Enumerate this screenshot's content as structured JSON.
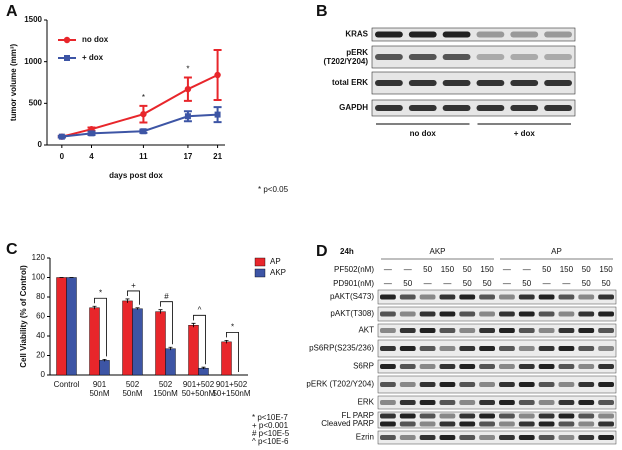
{
  "panels": [
    "A",
    "B",
    "C",
    "D"
  ],
  "chart_data": [
    {
      "type": "line",
      "ylabel": "tumor volume (mm³)",
      "xlabel": "days post dox",
      "annotation": "* p<0.05",
      "x": [
        0,
        4,
        11,
        17,
        21
      ],
      "xlim": [
        -2,
        22
      ],
      "xticks": [
        0,
        4,
        11,
        17,
        21
      ],
      "ylim": [
        0,
        1500
      ],
      "yticks": [
        0,
        500,
        1000,
        1500
      ],
      "significance": [
        null,
        null,
        "*",
        "*",
        null
      ],
      "series": [
        {
          "name": "no dox",
          "color": "#e8262b",
          "marker": "circle",
          "values": [
            100,
            190,
            370,
            670,
            840
          ],
          "errors": [
            10,
            20,
            100,
            140,
            300
          ]
        },
        {
          "name": "+ dox",
          "color": "#3d55a5",
          "marker": "square",
          "values": [
            100,
            140,
            165,
            345,
            365
          ],
          "errors": [
            10,
            20,
            20,
            60,
            90
          ]
        }
      ]
    },
    {
      "type": "bar",
      "ylabel": "Cell Viability (% of Control)",
      "categories": [
        "Control",
        "901\n50nM",
        "502\n50nM",
        "502\n150nM",
        "901+502\n50+50nM",
        "901+502\n50+150nM"
      ],
      "ylim": [
        0,
        120
      ],
      "yticks": [
        0,
        20,
        40,
        60,
        80,
        100,
        120
      ],
      "significance": [
        null,
        "*",
        "+",
        "#",
        "^",
        "*"
      ],
      "notes": [
        "* p<10E-7",
        "+ p<0.001",
        "# p<10E-5",
        "^ p<10E-6"
      ],
      "series": [
        {
          "name": "AP",
          "color": "#e8262b",
          "values": [
            100,
            69,
            76,
            65,
            51,
            34
          ],
          "errors": [
            0,
            1.5,
            2,
            2,
            2,
            1.5
          ]
        },
        {
          "name": "AKP",
          "color": "#3d55a5",
          "values": [
            100,
            15,
            68,
            27,
            7,
            null
          ],
          "errors": [
            0,
            1,
            1,
            1.5,
            1,
            null
          ]
        }
      ]
    }
  ],
  "blot_b": {
    "rows": [
      "KRAS",
      "pERK\n(T202/Y204)",
      "total ERK",
      "GAPDH"
    ],
    "groups": [
      "no dox",
      "+ dox"
    ]
  },
  "blot_d": {
    "title": "24h",
    "groups": [
      "AKP",
      "AP"
    ],
    "treatments": [
      {
        "name": "PF502(nM)",
        "color": "#e8262b",
        "values": [
          "—",
          "—",
          "50",
          "150",
          "50",
          "150",
          "—",
          "—",
          "50",
          "150",
          "50",
          "150"
        ]
      },
      {
        "name": "PD901(nM)",
        "color": "#2ca02c",
        "values": [
          "—",
          "50",
          "—",
          "—",
          "50",
          "50",
          "—",
          "50",
          "—",
          "—",
          "50",
          "50"
        ]
      }
    ],
    "rows": [
      "pAKT(S473)",
      "pAKT(T308)",
      "AKT",
      "pS6RP(S235/236)",
      "S6RP",
      "pERK (T202/Y204)",
      "ERK",
      "FL PARP",
      "Cleaved PARP",
      "Ezrin"
    ]
  }
}
